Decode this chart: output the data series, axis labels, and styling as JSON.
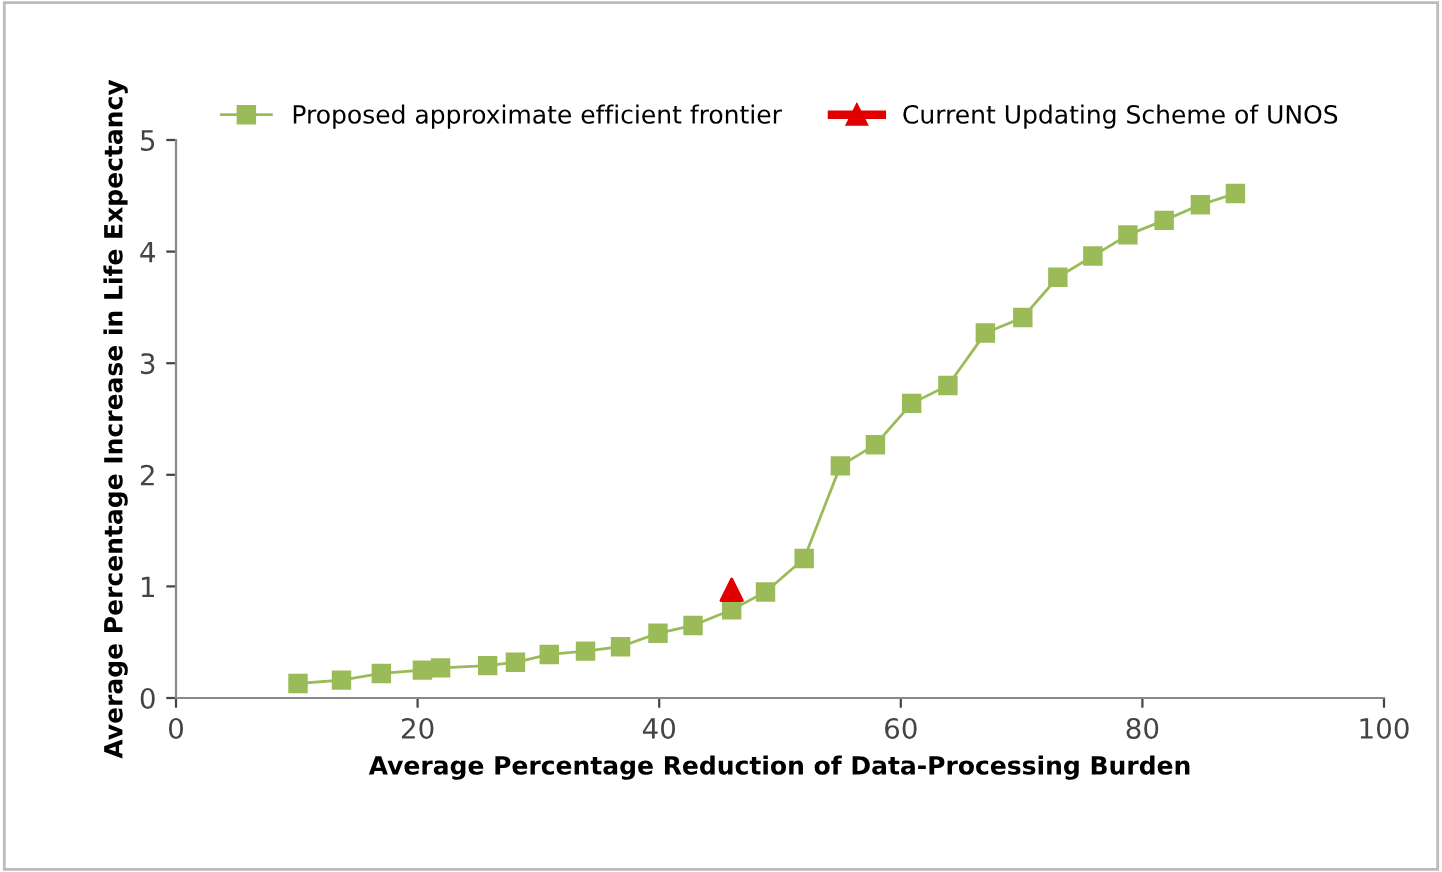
{
  "chart_data": {
    "type": "line",
    "xlabel": "Average Percentage Reduction of Data-Processing Burden",
    "ylabel": "Average Percentage Increase in Life Expectancy",
    "xlim": [
      0,
      100
    ],
    "xticks": [
      0,
      20,
      40,
      60,
      80,
      100
    ],
    "ylim": [
      0,
      5
    ],
    "yticks": [
      0,
      1,
      2,
      3,
      4,
      5
    ],
    "grid": false,
    "legend": "top",
    "series": [
      {
        "name": "Proposed approximate efficient frontier",
        "color": "#9bbb59",
        "marker": "square",
        "x": [
          10.1,
          13.7,
          17.0,
          20.4,
          21.9,
          25.8,
          28.1,
          30.9,
          33.9,
          36.8,
          39.9,
          42.8,
          46.0,
          48.8,
          52.0,
          55.0,
          57.9,
          60.9,
          63.9,
          67.0,
          70.1,
          73.0,
          75.9,
          78.8,
          81.8,
          84.8,
          87.7
        ],
        "values": [
          0.13,
          0.16,
          0.22,
          0.25,
          0.27,
          0.29,
          0.32,
          0.39,
          0.42,
          0.46,
          0.58,
          0.65,
          0.79,
          0.95,
          1.25,
          2.08,
          2.27,
          2.64,
          2.8,
          3.27,
          3.41,
          3.77,
          3.96,
          4.15,
          4.28,
          4.42,
          4.52
        ]
      },
      {
        "name": "Current Updating Scheme of UNOS",
        "color": "#e00000",
        "type": "scatter",
        "marker": "triangle",
        "x": [
          46.0
        ],
        "values": [
          0.97
        ]
      }
    ]
  }
}
